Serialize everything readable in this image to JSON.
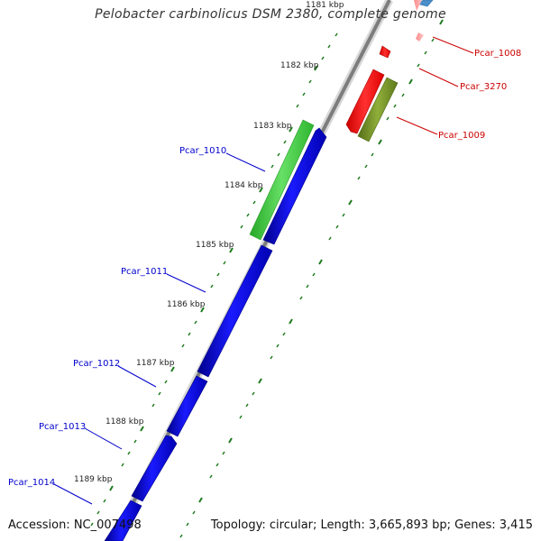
{
  "title": "Pelobacter carbinolicus DSM 2380, complete genome",
  "footer": {
    "accession": "Accession: NC_007498",
    "topology": "Topology: circular; Length: 3,665,893 bp; Genes: 3,415"
  },
  "colors": {
    "backbone": "#8a8a8a",
    "tick": "#1e7a1e",
    "forward_gene": "#0000ee",
    "reverse_gene_red": "#ff0000",
    "reverse_gene_olive": "#6e8f23",
    "green_gene": "#3ccc3c",
    "forward_label": "#0000cc",
    "reverse_label": "#cc0000"
  },
  "ticks": [
    {
      "label": "1181 kbp",
      "kbp": 1181
    },
    {
      "label": "1182 kbp",
      "kbp": 1182
    },
    {
      "label": "1183 kbp",
      "kbp": 1183
    },
    {
      "label": "1184 kbp",
      "kbp": 1184
    },
    {
      "label": "1185 kbp",
      "kbp": 1185
    },
    {
      "label": "1186 kbp",
      "kbp": 1186
    },
    {
      "label": "1187 kbp",
      "kbp": 1187
    },
    {
      "label": "1188 kbp",
      "kbp": 1188
    },
    {
      "label": "1189 kbp",
      "kbp": 1189
    }
  ],
  "genes": [
    {
      "name": "Pcar_1008",
      "strand": "reverse",
      "color": "red"
    },
    {
      "name": "Pcar_3270",
      "strand": "reverse",
      "color": "red"
    },
    {
      "name": "Pcar_1009",
      "strand": "reverse",
      "color": "olive"
    },
    {
      "name": "Pcar_1010",
      "strand": "forward",
      "color": "green"
    },
    {
      "name": "Pcar_1011",
      "strand": "forward",
      "color": "blue"
    },
    {
      "name": "Pcar_1012",
      "strand": "forward",
      "color": "blue"
    },
    {
      "name": "Pcar_1013",
      "strand": "forward",
      "color": "blue"
    },
    {
      "name": "Pcar_1014",
      "strand": "forward",
      "color": "blue"
    }
  ]
}
